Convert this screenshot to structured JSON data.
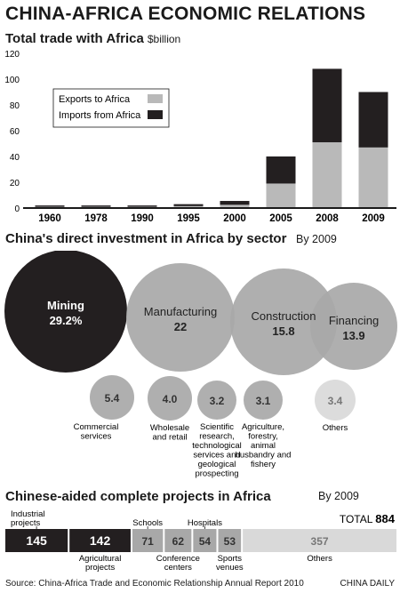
{
  "title": "CHINA-AFRICA ECONOMIC RELATIONS",
  "colors": {
    "exports": "#b9b9b9",
    "imports": "#231f20",
    "bubble": "#a8a8a8",
    "bubble_dark": "#231f20",
    "bubble_light": "#d9d9d9",
    "text": "#1a1a1a"
  },
  "chart_data": [
    {
      "type": "bar",
      "stacked": true,
      "title": "Total trade with Africa",
      "unit": "$billion",
      "categories": [
        "1960",
        "1978",
        "1990",
        "1995",
        "2000",
        "2005",
        "2008",
        "2009"
      ],
      "series": [
        {
          "name": "Exports to Africa",
          "values": [
            1,
            1,
            1,
            1.5,
            2.5,
            19,
            51,
            47
          ]
        },
        {
          "name": "Imports from Africa",
          "values": [
            1,
            1,
            1,
            1.5,
            3,
            21,
            57,
            43
          ]
        }
      ],
      "ylim": [
        0,
        120
      ],
      "yticks": [
        0,
        20,
        40,
        60,
        80,
        100,
        120
      ],
      "grid": false,
      "legend": "top-left"
    },
    {
      "type": "bubble",
      "title": "China's direct investment in Africa by sector",
      "subtitle": "By 2009",
      "sectors": [
        {
          "label": "Mining",
          "value_label": "29.2%",
          "value": 29.2,
          "tone": "dark"
        },
        {
          "label": "Manufacturing",
          "value_label": "22",
          "value": 22,
          "tone": "mid"
        },
        {
          "label": "Construction",
          "value_label": "15.8",
          "value": 15.8,
          "tone": "mid"
        },
        {
          "label": "Financing",
          "value_label": "13.9",
          "value": 13.9,
          "tone": "mid"
        },
        {
          "label": "Commercial services",
          "value_label": "5.4",
          "value": 5.4,
          "tone": "mid"
        },
        {
          "label": "Wholesale and retail",
          "value_label": "4.0",
          "value": 4.0,
          "tone": "mid"
        },
        {
          "label": "Scientific research, technological services and geological prospecting",
          "value_label": "3.2",
          "value": 3.2,
          "tone": "mid"
        },
        {
          "label": "Agriculture, forestry, animal husbandry and fishery",
          "value_label": "3.1",
          "value": 3.1,
          "tone": "mid"
        },
        {
          "label": "Others",
          "value_label": "3.4",
          "value": 3.4,
          "tone": "light"
        }
      ]
    },
    {
      "type": "bar",
      "orientation": "horizontal-segmented",
      "title": "Chinese-aided complete projects in Africa",
      "subtitle": "By 2009",
      "total_label": "TOTAL",
      "total": 884,
      "segments": [
        {
          "label": "Industrial projects",
          "value": 145,
          "tone": "dark"
        },
        {
          "label": "Agricultural projects",
          "value": 142,
          "tone": "dark"
        },
        {
          "label": "Schools",
          "value": 71,
          "tone": "mid"
        },
        {
          "label": "Conference centers",
          "value": 62,
          "tone": "mid"
        },
        {
          "label": "Hospitals",
          "value": 54,
          "tone": "mid"
        },
        {
          "label": "Sports venues",
          "value": 53,
          "tone": "mid"
        },
        {
          "label": "Others",
          "value": 357,
          "tone": "light"
        }
      ]
    }
  ],
  "source": "Source: China-Africa Trade and Economic Relationship Annual Report 2010",
  "credit": "CHINA DAILY"
}
